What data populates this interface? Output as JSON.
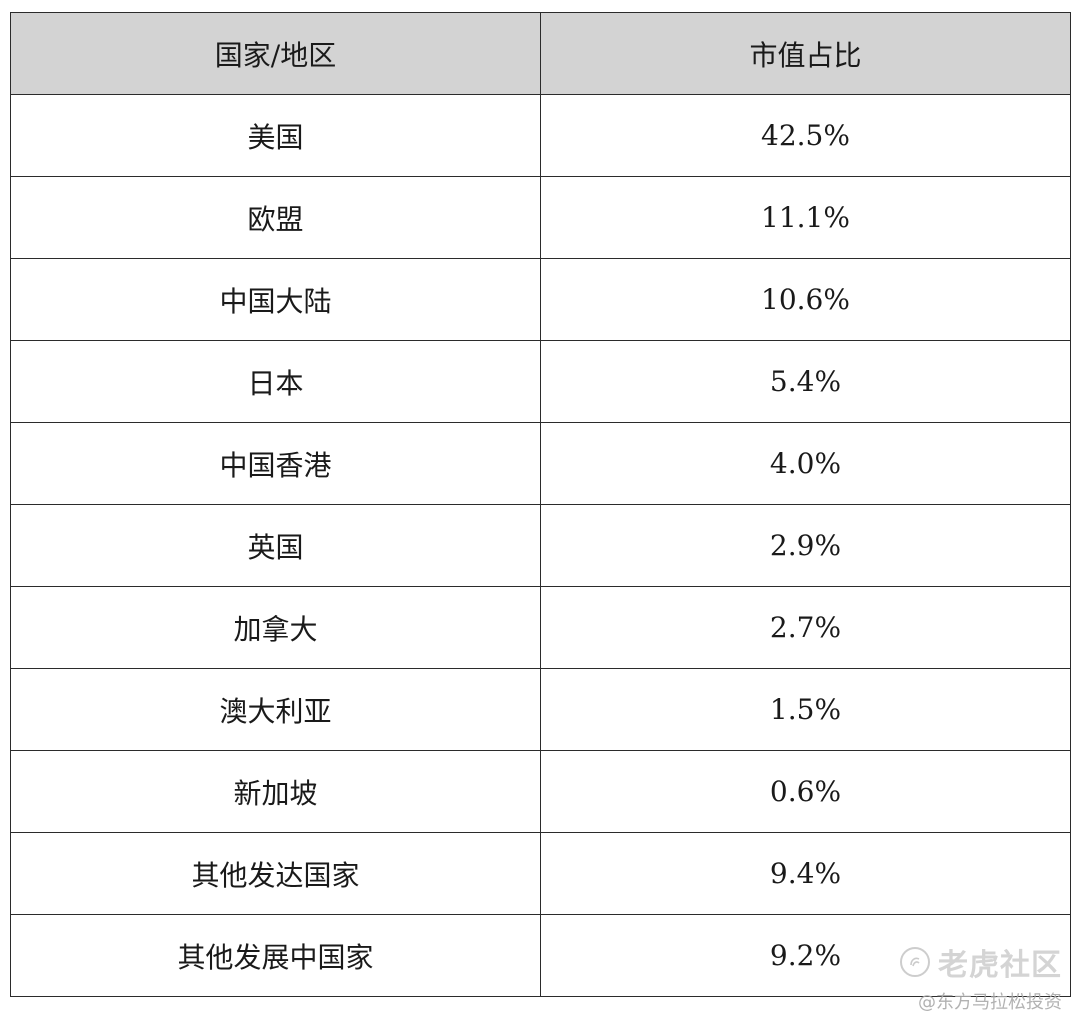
{
  "table": {
    "headers": [
      "国家/地区",
      "市值占比"
    ],
    "rows": [
      [
        "美国",
        "42.5%"
      ],
      [
        "欧盟",
        "11.1%"
      ],
      [
        "中国大陆",
        "10.6%"
      ],
      [
        "日本",
        "5.4%"
      ],
      [
        "中国香港",
        "4.0%"
      ],
      [
        "英国",
        "2.9%"
      ],
      [
        "加拿大",
        "2.7%"
      ],
      [
        "澳大利亚",
        "1.5%"
      ],
      [
        "新加坡",
        "0.6%"
      ],
      [
        "其他发达国家",
        "9.4%"
      ],
      [
        "其他发展中国家",
        "9.2%"
      ]
    ]
  },
  "watermark": {
    "icon": "tiger-community-logo-icon",
    "brand": "老虎社区",
    "author": "@东方马拉松投资"
  },
  "colors": {
    "header_bg": "#d3d3d3",
    "border": "#2b2b2b",
    "text": "#1a1a1a"
  }
}
